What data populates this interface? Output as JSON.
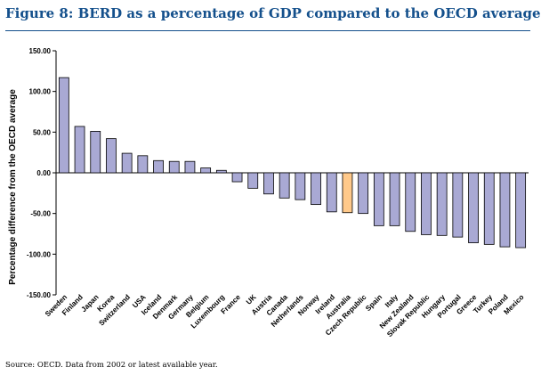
{
  "figure": {
    "title": "Figure 8: BERD as a percentage of GDP compared to the OECD average",
    "source": "Source: OECD.  Data from 2002 or latest available year."
  },
  "colors": {
    "title": "#14508c",
    "bar": "#a9a9d4",
    "bar_highlight": "#ffc98a",
    "bar_stroke": "#000000"
  },
  "chart_data": {
    "type": "bar",
    "ylabel": "Percentage difference from the OECD average",
    "ylim": [
      -150,
      150
    ],
    "yticks": [
      150,
      100,
      50,
      0,
      -50,
      -100,
      -150
    ],
    "ytick_labels": [
      "150.00",
      "100.00",
      "50.00",
      "0.00",
      "-50.00",
      "-100.00",
      "-150.00"
    ],
    "grid": false,
    "highlight": "Australia",
    "categories": [
      "Sweden",
      "Finland",
      "Japan",
      "Korea",
      "Switzerland",
      "USA",
      "Iceland",
      "Denmark",
      "Germany",
      "Belgium",
      "Luxembourg",
      "France",
      "UK",
      "Austria",
      "Canada",
      "Netherlands",
      "Norway",
      "Ireland",
      "Australia",
      "Czech Republic",
      "Spain",
      "Italy",
      "New Zealand",
      "Slovak Republic",
      "Hungary",
      "Portugal",
      "Greece",
      "Turkey",
      "Poland",
      "Mexico"
    ],
    "values": [
      117,
      57,
      51,
      42,
      24,
      21,
      15,
      14,
      14,
      6,
      3,
      -11,
      -19,
      -26,
      -31,
      -33,
      -39,
      -48,
      -49,
      -50,
      -65,
      -65,
      -72,
      -76,
      -77,
      -79,
      -86,
      -88,
      -91,
      -92
    ]
  }
}
